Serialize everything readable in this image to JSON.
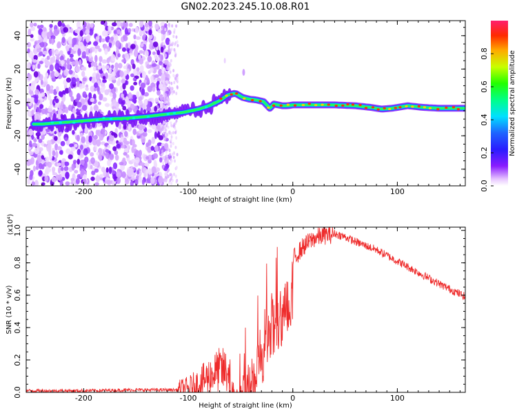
{
  "title": "GN02.2023.245.10.08.R01",
  "colors": {
    "trace": "#ee2b2b",
    "axes": "#000000"
  },
  "chart_data": [
    {
      "type": "heatmap",
      "xlabel": "Height of straight line (km)",
      "ylabel": "Frequency (Hz)",
      "xlim": [
        -255,
        165
      ],
      "ylim": [
        -50,
        49
      ],
      "xticks": [
        -200,
        -100,
        0,
        100
      ],
      "yticks": [
        -40,
        -20,
        0,
        20,
        40
      ],
      "colorbar": {
        "label": "Normalized spectral amplitude",
        "range": [
          0,
          1
        ],
        "ticks": [
          "0.0",
          "0.2",
          "0.4",
          "0.6",
          "0.8"
        ],
        "colormap": "rainbow"
      },
      "ridge": {
        "x": [
          -240,
          -220,
          -200,
          -180,
          -160,
          -140,
          -120,
          -105,
          -90,
          -80,
          -70,
          -62,
          -55,
          -48,
          -42,
          -35,
          -28,
          -22,
          -18,
          -14,
          -10,
          -5,
          0,
          20,
          40,
          60,
          75,
          85,
          95,
          110,
          125,
          140,
          165
        ],
        "y": [
          -13,
          -12,
          -11,
          -10,
          -9.5,
          -8.5,
          -7,
          -6,
          -4,
          -2,
          1,
          4.5,
          5.5,
          3,
          2,
          1.5,
          0.5,
          -3.5,
          -1,
          -1.5,
          -2,
          -2,
          -1.5,
          -1.5,
          -1.5,
          -2,
          -3,
          -4,
          -3.5,
          -2,
          -3,
          -3.5,
          -3.5
        ]
      }
    },
    {
      "type": "line",
      "xlabel": "Height of straight line (km)",
      "ylabel": "SNR (10 * v/v)",
      "yscale_label": "(x10⁴)",
      "xlim": [
        -255,
        165
      ],
      "ylim": [
        0,
        1.02
      ],
      "xticks": [
        -200,
        -100,
        0,
        100
      ],
      "yticks": [
        "0.0",
        "0.2",
        "0.4",
        "0.6",
        "0.8",
        "1.0"
      ],
      "series": [
        {
          "x": [
            -255,
            -200,
            -150,
            -110,
            -100,
            -90,
            -80,
            -70,
            -60,
            -50,
            -45,
            -40,
            -35,
            -30,
            -25,
            -20,
            -15,
            -10,
            -5,
            0,
            10,
            20,
            30,
            40,
            50,
            60,
            80,
            100,
            120,
            140,
            165
          ],
          "y": [
            0.01,
            0.01,
            0.015,
            0.015,
            0.02,
            0.05,
            0.1,
            0.14,
            0.12,
            0.1,
            0.14,
            0.22,
            0.3,
            0.42,
            0.5,
            0.58,
            0.62,
            0.68,
            0.74,
            0.82,
            0.9,
            0.95,
            0.97,
            0.98,
            0.96,
            0.93,
            0.88,
            0.81,
            0.74,
            0.67,
            0.59
          ]
        }
      ]
    }
  ]
}
